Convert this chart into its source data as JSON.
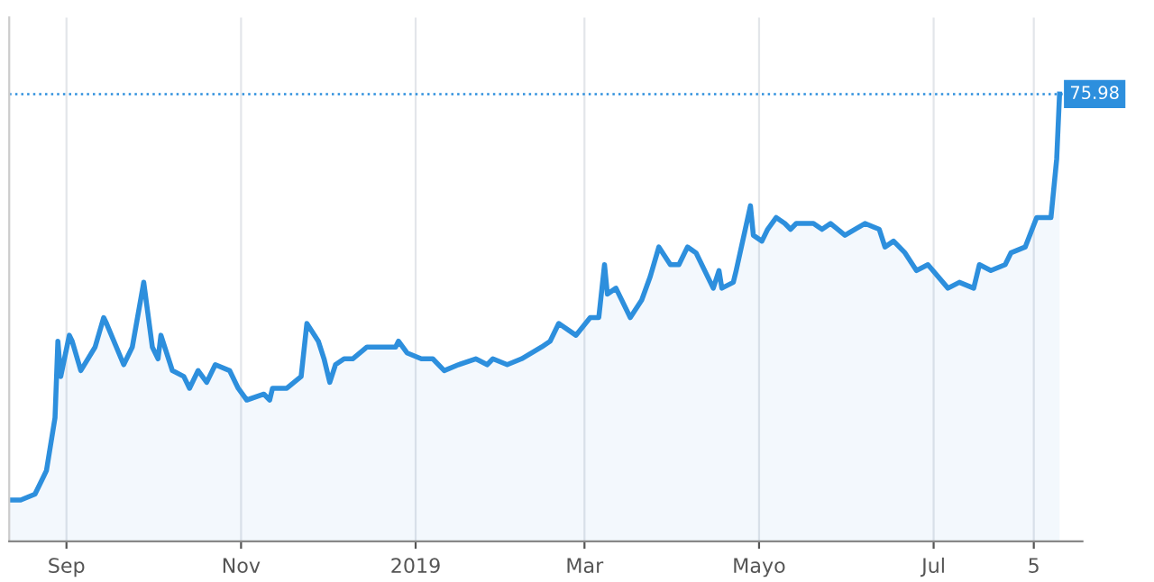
{
  "chart_data": {
    "type": "area",
    "ylim": [
      0,
      89
    ],
    "tick_labels": "x",
    "grid": "x",
    "legend": false,
    "marker": "none",
    "line_style": "solid",
    "xlim": [
      "2018-08-12",
      "2019-08-22"
    ],
    "xticks": [
      {
        "value": "2018-09-01",
        "label": "Sep"
      },
      {
        "value": "2018-11-01",
        "label": "Nov"
      },
      {
        "value": "2019-01-01",
        "label": "2019"
      },
      {
        "value": "2019-03-01",
        "label": "Mar"
      },
      {
        "value": "2019-05-01",
        "label": "Mayo"
      },
      {
        "value": "2019-07-01",
        "label": "Jul"
      },
      {
        "value": "2019-08-05",
        "label": "5"
      }
    ],
    "ref_lines": [
      {
        "axis": "y",
        "value": 75.98,
        "color": "#2d8fdd",
        "line_style": "dotted"
      }
    ],
    "series": [
      {
        "color": "#2d8fdd",
        "x": [
          "2018-08-12",
          "2018-08-16",
          "2018-08-21",
          "2018-08-24",
          "2018-08-25",
          "2018-08-28",
          "2018-08-29",
          "2018-08-30",
          "2018-09-02",
          "2018-09-03",
          "2018-09-06",
          "2018-09-11",
          "2018-09-14",
          "2018-09-15",
          "2018-09-21",
          "2018-09-24",
          "2018-09-28",
          "2018-10-01",
          "2018-10-03",
          "2018-10-04",
          "2018-10-08",
          "2018-10-12",
          "2018-10-14",
          "2018-10-17",
          "2018-10-20",
          "2018-10-23",
          "2018-10-28",
          "2018-10-31",
          "2018-11-03",
          "2018-11-09",
          "2018-11-11",
          "2018-11-12",
          "2018-11-17",
          "2018-11-22",
          "2018-11-24",
          "2018-11-28",
          "2018-11-30",
          "2018-12-02",
          "2018-12-04",
          "2018-12-07",
          "2018-12-10",
          "2018-12-15",
          "2018-12-19",
          "2018-12-21",
          "2018-12-25",
          "2018-12-26",
          "2018-12-29",
          "2019-01-03",
          "2019-01-07",
          "2019-01-11",
          "2019-01-16",
          "2019-01-22",
          "2019-01-26",
          "2019-01-28",
          "2019-02-02",
          "2019-02-07",
          "2019-02-14",
          "2019-02-17",
          "2019-02-20",
          "2019-02-26",
          "2019-03-03",
          "2019-03-06",
          "2019-03-08",
          "2019-03-09",
          "2019-03-12",
          "2019-03-17",
          "2019-03-21",
          "2019-03-24",
          "2019-03-27",
          "2019-03-31",
          "2019-04-03",
          "2019-04-06",
          "2019-04-09",
          "2019-04-15",
          "2019-04-17",
          "2019-04-18",
          "2019-04-22",
          "2019-04-23",
          "2019-04-28",
          "2019-04-29",
          "2019-05-02",
          "2019-05-04",
          "2019-05-07",
          "2019-05-10",
          "2019-05-12",
          "2019-05-14",
          "2019-05-20",
          "2019-05-23",
          "2019-05-26",
          "2019-05-31",
          "2019-06-07",
          "2019-06-12",
          "2019-06-14",
          "2019-06-17",
          "2019-06-21",
          "2019-06-25",
          "2019-06-29",
          "2019-07-06",
          "2019-07-10",
          "2019-07-15",
          "2019-07-17",
          "2019-07-21",
          "2019-07-26",
          "2019-07-28",
          "2019-08-02",
          "2019-08-06",
          "2019-08-11",
          "2019-08-13",
          "2019-08-14"
        ],
        "value_labels": [
          null,
          null,
          null,
          null,
          null,
          null,
          null,
          null,
          null,
          null,
          null,
          null,
          null,
          null,
          null,
          null,
          null,
          null,
          null,
          null,
          null,
          null,
          null,
          null,
          null,
          null,
          null,
          null,
          null,
          null,
          null,
          null,
          null,
          null,
          null,
          null,
          null,
          null,
          null,
          null,
          null,
          null,
          null,
          null,
          null,
          null,
          null,
          null,
          null,
          null,
          null,
          null,
          null,
          null,
          null,
          null,
          null,
          null,
          null,
          null,
          null,
          null,
          null,
          null,
          null,
          null,
          null,
          null,
          null,
          null,
          null,
          null,
          null,
          null,
          null,
          null,
          null,
          null,
          null,
          null,
          null,
          null,
          null,
          null,
          null,
          null,
          null,
          null,
          null,
          null,
          null,
          null,
          null,
          null,
          null,
          null,
          null,
          null,
          null,
          null,
          null,
          null,
          null,
          null,
          null,
          null,
          null,
          null,
          "75.98"
        ],
        "values": [
          7,
          7,
          8,
          11,
          12,
          21,
          34,
          28,
          35,
          34,
          29,
          33,
          38,
          37,
          30,
          33,
          44,
          33,
          31,
          35,
          29,
          28,
          26,
          29,
          27,
          30,
          29,
          26,
          24,
          25,
          24,
          26,
          26,
          28,
          37,
          34,
          31,
          27,
          30,
          31,
          31,
          33,
          33,
          33,
          33,
          34,
          32,
          31,
          31,
          29,
          30,
          31,
          30,
          31,
          30,
          31,
          33,
          34,
          37,
          35,
          38,
          38,
          47,
          42,
          43,
          38,
          41,
          45,
          50,
          47,
          47,
          50,
          49,
          43,
          46,
          43,
          44,
          46,
          57,
          52,
          51,
          53,
          55,
          54,
          53,
          54,
          54,
          53,
          54,
          52,
          54,
          53,
          50,
          51,
          49,
          46,
          47,
          43,
          44,
          43,
          47,
          46,
          47,
          49,
          50,
          55,
          55,
          65,
          75.98
        ]
      }
    ]
  }
}
